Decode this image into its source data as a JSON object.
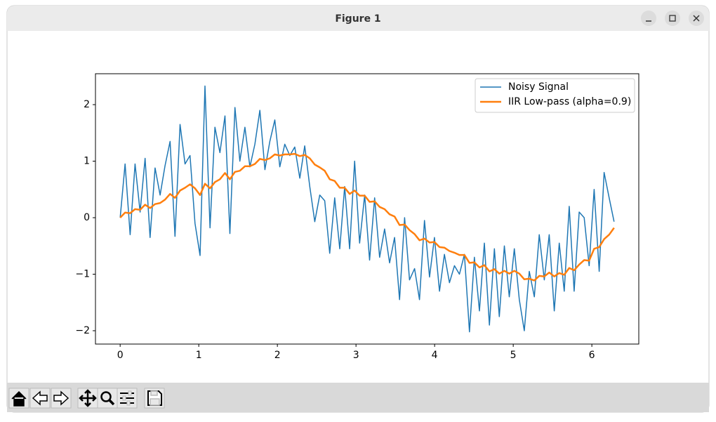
{
  "window": {
    "title": "Figure 1"
  },
  "chart_data": {
    "type": "line",
    "x": [
      0,
      0.063,
      0.127,
      0.19,
      0.254,
      0.317,
      0.381,
      0.444,
      0.508,
      0.571,
      0.635,
      0.698,
      0.762,
      0.825,
      0.889,
      0.952,
      1.016,
      1.079,
      1.143,
      1.206,
      1.269,
      1.333,
      1.396,
      1.46,
      1.523,
      1.587,
      1.65,
      1.714,
      1.777,
      1.841,
      1.904,
      1.967,
      2.031,
      2.094,
      2.158,
      2.221,
      2.285,
      2.348,
      2.412,
      2.475,
      2.539,
      2.602,
      2.666,
      2.729,
      2.793,
      2.856,
      2.919,
      2.983,
      3.046,
      3.11,
      3.173,
      3.237,
      3.3,
      3.364,
      3.427,
      3.491,
      3.554,
      3.618,
      3.681,
      3.745,
      3.808,
      3.871,
      3.935,
      3.998,
      4.062,
      4.125,
      4.189,
      4.252,
      4.316,
      4.379,
      4.443,
      4.506,
      4.57,
      4.633,
      4.697,
      4.76,
      4.823,
      4.887,
      4.95,
      5.014,
      5.077,
      5.141,
      5.204,
      5.268,
      5.331,
      5.395,
      5.458,
      5.522,
      5.585,
      5.649,
      5.712,
      5.775,
      5.839,
      5.902,
      5.966,
      6.029,
      6.093,
      6.156,
      6.22,
      6.283
    ],
    "series": [
      {
        "name": "Noisy Signal",
        "color": "#1f77b4",
        "width": 1.5,
        "values": [
          0,
          0.95,
          -0.3,
          0.95,
          0.1,
          1.05,
          -0.35,
          0.88,
          0.4,
          0.92,
          1.35,
          -0.33,
          1.65,
          0.95,
          1.1,
          -0.1,
          -0.67,
          2.33,
          -0.18,
          1.6,
          1.15,
          1.8,
          -0.28,
          1.95,
          1,
          1.6,
          0.9,
          1.3,
          1.9,
          0.85,
          1.35,
          1.73,
          0.9,
          1.3,
          1.1,
          1.25,
          0.7,
          1.27,
          0.55,
          -0.07,
          0.4,
          0.3,
          -0.63,
          0.35,
          -0.55,
          0.55,
          -0.55,
          1,
          -0.45,
          0.4,
          -0.75,
          0.35,
          -0.7,
          -0.2,
          -0.8,
          -0.35,
          -1.45,
          0,
          -1.1,
          -0.9,
          -1.45,
          -0.05,
          -1.05,
          -0.35,
          -1.3,
          -0.65,
          -1.15,
          -0.85,
          -1,
          -0.65,
          -2.02,
          -0.7,
          -1.65,
          -0.45,
          -1.9,
          -0.55,
          -1.75,
          -0.5,
          -1.4,
          -0.55,
          -1.45,
          -2,
          -0.95,
          -1.4,
          -0.3,
          -1.1,
          -0.3,
          -1.65,
          -0.45,
          -1.3,
          0.2,
          -1.3,
          0.1,
          0,
          -0.85,
          0.5,
          -0.95,
          0.8,
          0.35,
          -0.07
        ]
      },
      {
        "name": "IIR Low-pass (alpha=0.9)",
        "color": "#ff7f0e",
        "width": 2.5,
        "values": [
          0,
          0.09,
          0.08,
          0.15,
          0.14,
          0.23,
          0.17,
          0.24,
          0.26,
          0.32,
          0.42,
          0.35,
          0.48,
          0.53,
          0.59,
          0.52,
          0.4,
          0.6,
          0.52,
          0.63,
          0.68,
          0.79,
          0.68,
          0.81,
          0.83,
          0.91,
          0.91,
          0.95,
          1.04,
          1.02,
          1.05,
          1.12,
          1.1,
          1.12,
          1.12,
          1.13,
          1.09,
          1.11,
          1.05,
          0.94,
          0.89,
          0.83,
          0.68,
          0.65,
          0.53,
          0.53,
          0.42,
          0.48,
          0.39,
          0.39,
          0.28,
          0.29,
          0.19,
          0.15,
          0.06,
          0.02,
          -0.13,
          -0.12,
          -0.22,
          -0.29,
          -0.4,
          -0.37,
          -0.44,
          -0.43,
          -0.52,
          -0.53,
          -0.59,
          -0.62,
          -0.66,
          -0.66,
          -0.8,
          -0.79,
          -0.88,
          -0.84,
          -0.95,
          -0.91,
          -0.99,
          -0.94,
          -0.99,
          -0.94,
          -0.99,
          -1.09,
          -1.08,
          -1.11,
          -1.03,
          -1.04,
          -0.97,
          -1.04,
          -0.98,
          -1.01,
          -0.89,
          -0.93,
          -0.83,
          -0.75,
          -0.76,
          -0.55,
          -0.52,
          -0.38,
          -0.3,
          -0.18
        ]
      }
    ],
    "xlim": [
      -0.314,
      6.597
    ],
    "ylim": [
      -2.236,
      2.547
    ],
    "xticks": [
      0,
      1,
      2,
      3,
      4,
      5,
      6
    ],
    "yticks": [
      {
        "value": -2,
        "label": "−2"
      },
      {
        "value": -1,
        "label": "−1"
      },
      0,
      1,
      2
    ],
    "legend": "upper right"
  }
}
